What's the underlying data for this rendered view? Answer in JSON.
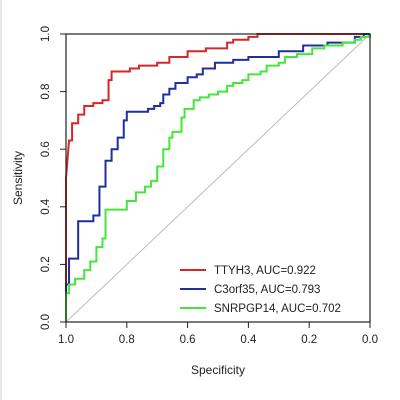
{
  "chart_data": {
    "type": "line",
    "title": "",
    "xlabel": "Specificity",
    "ylabel": "Sensitivity",
    "xlim": [
      1.0,
      0.0
    ],
    "ylim": [
      0.0,
      1.0
    ],
    "x_reversed": true,
    "x_ticks": [
      "1.0",
      "0.8",
      "0.6",
      "0.4",
      "0.2",
      "0.0"
    ],
    "y_ticks": [
      "0.0",
      "0.2",
      "0.4",
      "0.6",
      "0.8",
      "1.0"
    ],
    "grid": false,
    "legend_position": "bottom-right",
    "reference_line": {
      "from": [
        1.0,
        0.0
      ],
      "to": [
        0.0,
        1.0
      ],
      "color": "#bdbdbd"
    },
    "series": [
      {
        "name": "TTYH3, AUC=0.922",
        "color": "#d62728",
        "points": [
          [
            1.0,
            0.0
          ],
          [
            1.0,
            0.5
          ],
          [
            0.99,
            0.63
          ],
          [
            0.98,
            0.63
          ],
          [
            0.98,
            0.69
          ],
          [
            0.96,
            0.69
          ],
          [
            0.96,
            0.72
          ],
          [
            0.94,
            0.72
          ],
          [
            0.94,
            0.75
          ],
          [
            0.91,
            0.75
          ],
          [
            0.91,
            0.76
          ],
          [
            0.88,
            0.76
          ],
          [
            0.88,
            0.77
          ],
          [
            0.86,
            0.77
          ],
          [
            0.86,
            0.84
          ],
          [
            0.85,
            0.84
          ],
          [
            0.85,
            0.87
          ],
          [
            0.79,
            0.87
          ],
          [
            0.79,
            0.88
          ],
          [
            0.76,
            0.88
          ],
          [
            0.76,
            0.89
          ],
          [
            0.7,
            0.89
          ],
          [
            0.7,
            0.9
          ],
          [
            0.66,
            0.9
          ],
          [
            0.66,
            0.92
          ],
          [
            0.6,
            0.92
          ],
          [
            0.6,
            0.94
          ],
          [
            0.54,
            0.94
          ],
          [
            0.54,
            0.95
          ],
          [
            0.47,
            0.95
          ],
          [
            0.47,
            0.97
          ],
          [
            0.45,
            0.97
          ],
          [
            0.45,
            0.98
          ],
          [
            0.4,
            0.98
          ],
          [
            0.4,
            0.99
          ],
          [
            0.37,
            0.99
          ],
          [
            0.37,
            1.0
          ],
          [
            0.0,
            1.0
          ]
        ]
      },
      {
        "name": "C3orf35, AUC=0.793",
        "color": "#1f2f9e",
        "points": [
          [
            1.0,
            0.0
          ],
          [
            1.0,
            0.13
          ],
          [
            0.99,
            0.13
          ],
          [
            0.99,
            0.22
          ],
          [
            0.96,
            0.22
          ],
          [
            0.96,
            0.35
          ],
          [
            0.91,
            0.35
          ],
          [
            0.91,
            0.37
          ],
          [
            0.89,
            0.37
          ],
          [
            0.89,
            0.47
          ],
          [
            0.87,
            0.47
          ],
          [
            0.87,
            0.56
          ],
          [
            0.85,
            0.56
          ],
          [
            0.85,
            0.6
          ],
          [
            0.83,
            0.6
          ],
          [
            0.83,
            0.64
          ],
          [
            0.81,
            0.64
          ],
          [
            0.81,
            0.7
          ],
          [
            0.8,
            0.7
          ],
          [
            0.8,
            0.73
          ],
          [
            0.73,
            0.73
          ],
          [
            0.73,
            0.74
          ],
          [
            0.71,
            0.74
          ],
          [
            0.71,
            0.75
          ],
          [
            0.69,
            0.75
          ],
          [
            0.69,
            0.76
          ],
          [
            0.68,
            0.76
          ],
          [
            0.68,
            0.79
          ],
          [
            0.66,
            0.79
          ],
          [
            0.66,
            0.81
          ],
          [
            0.64,
            0.81
          ],
          [
            0.64,
            0.83
          ],
          [
            0.6,
            0.83
          ],
          [
            0.6,
            0.85
          ],
          [
            0.57,
            0.85
          ],
          [
            0.57,
            0.86
          ],
          [
            0.55,
            0.86
          ],
          [
            0.55,
            0.88
          ],
          [
            0.51,
            0.88
          ],
          [
            0.51,
            0.9
          ],
          [
            0.45,
            0.9
          ],
          [
            0.45,
            0.91
          ],
          [
            0.4,
            0.91
          ],
          [
            0.4,
            0.92
          ],
          [
            0.3,
            0.92
          ],
          [
            0.3,
            0.94
          ],
          [
            0.22,
            0.94
          ],
          [
            0.22,
            0.96
          ],
          [
            0.14,
            0.96
          ],
          [
            0.14,
            0.97
          ],
          [
            0.05,
            0.97
          ],
          [
            0.05,
            0.99
          ],
          [
            0.02,
            0.99
          ],
          [
            0.02,
            1.0
          ],
          [
            0.0,
            1.0
          ]
        ]
      },
      {
        "name": "SNRPGP14, AUC=0.702",
        "color": "#44e63c",
        "points": [
          [
            1.0,
            0.0
          ],
          [
            1.0,
            0.1
          ],
          [
            0.99,
            0.1
          ],
          [
            0.99,
            0.13
          ],
          [
            0.97,
            0.13
          ],
          [
            0.97,
            0.15
          ],
          [
            0.94,
            0.15
          ],
          [
            0.94,
            0.18
          ],
          [
            0.92,
            0.18
          ],
          [
            0.92,
            0.21
          ],
          [
            0.9,
            0.21
          ],
          [
            0.9,
            0.26
          ],
          [
            0.88,
            0.26
          ],
          [
            0.88,
            0.29
          ],
          [
            0.87,
            0.29
          ],
          [
            0.87,
            0.39
          ],
          [
            0.8,
            0.39
          ],
          [
            0.8,
            0.42
          ],
          [
            0.77,
            0.42
          ],
          [
            0.77,
            0.45
          ],
          [
            0.74,
            0.45
          ],
          [
            0.74,
            0.47
          ],
          [
            0.72,
            0.47
          ],
          [
            0.72,
            0.49
          ],
          [
            0.7,
            0.49
          ],
          [
            0.7,
            0.54
          ],
          [
            0.68,
            0.54
          ],
          [
            0.68,
            0.6
          ],
          [
            0.66,
            0.6
          ],
          [
            0.66,
            0.64
          ],
          [
            0.65,
            0.64
          ],
          [
            0.65,
            0.66
          ],
          [
            0.62,
            0.66
          ],
          [
            0.62,
            0.71
          ],
          [
            0.61,
            0.71
          ],
          [
            0.61,
            0.74
          ],
          [
            0.58,
            0.74
          ],
          [
            0.58,
            0.77
          ],
          [
            0.56,
            0.77
          ],
          [
            0.56,
            0.78
          ],
          [
            0.53,
            0.78
          ],
          [
            0.53,
            0.79
          ],
          [
            0.5,
            0.79
          ],
          [
            0.5,
            0.8
          ],
          [
            0.47,
            0.8
          ],
          [
            0.47,
            0.82
          ],
          [
            0.45,
            0.82
          ],
          [
            0.45,
            0.83
          ],
          [
            0.42,
            0.83
          ],
          [
            0.42,
            0.84
          ],
          [
            0.4,
            0.84
          ],
          [
            0.4,
            0.86
          ],
          [
            0.36,
            0.86
          ],
          [
            0.36,
            0.87
          ],
          [
            0.34,
            0.87
          ],
          [
            0.34,
            0.89
          ],
          [
            0.3,
            0.89
          ],
          [
            0.3,
            0.9
          ],
          [
            0.28,
            0.9
          ],
          [
            0.28,
            0.92
          ],
          [
            0.24,
            0.92
          ],
          [
            0.24,
            0.93
          ],
          [
            0.19,
            0.93
          ],
          [
            0.19,
            0.95
          ],
          [
            0.15,
            0.95
          ],
          [
            0.15,
            0.96
          ],
          [
            0.09,
            0.96
          ],
          [
            0.09,
            0.97
          ],
          [
            0.05,
            0.97
          ],
          [
            0.05,
            0.98
          ],
          [
            0.03,
            0.98
          ],
          [
            0.03,
            0.99
          ],
          [
            0.0,
            0.99
          ],
          [
            0.0,
            1.0
          ]
        ]
      }
    ]
  }
}
